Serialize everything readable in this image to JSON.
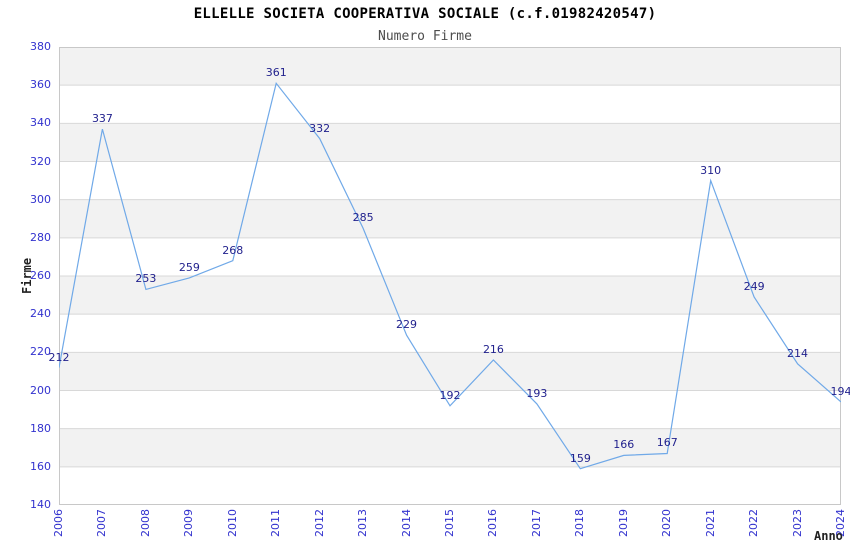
{
  "chart_data": {
    "type": "line",
    "title": "ELLELLE SOCIETA COOPERATIVA SOCIALE (c.f.01982420547)",
    "subtitle": "Numero Firme",
    "xlabel": "Anno",
    "ylabel": "Firme",
    "categories": [
      "2006",
      "2007",
      "2008",
      "2009",
      "2010",
      "2011",
      "2012",
      "2013",
      "2014",
      "2015",
      "2016",
      "2017",
      "2018",
      "2019",
      "2020",
      "2021",
      "2022",
      "2023",
      "2024"
    ],
    "values": [
      212,
      337,
      253,
      259,
      268,
      361,
      332,
      285,
      229,
      192,
      216,
      193,
      159,
      166,
      167,
      310,
      249,
      214,
      194
    ],
    "ylim": [
      140,
      380
    ],
    "ytick_step": 20,
    "yticks": [
      140,
      160,
      180,
      200,
      220,
      240,
      260,
      280,
      300,
      320,
      340,
      360,
      380
    ],
    "grid": "horizontal-bands-alternating",
    "legend": "none",
    "data_labels_visible": true,
    "colors": {
      "line": "#70A9E8",
      "tick_label": "#3232CE",
      "data_label": "#1F1F8C",
      "band_gray": "#F2F2F2",
      "gridline": "#D8D8D8",
      "plot_border": "#C8C8C8",
      "title": "#000000",
      "subtitle": "#4D4D4D",
      "axis_title": "#222222",
      "background": "#FFFFFF"
    }
  }
}
